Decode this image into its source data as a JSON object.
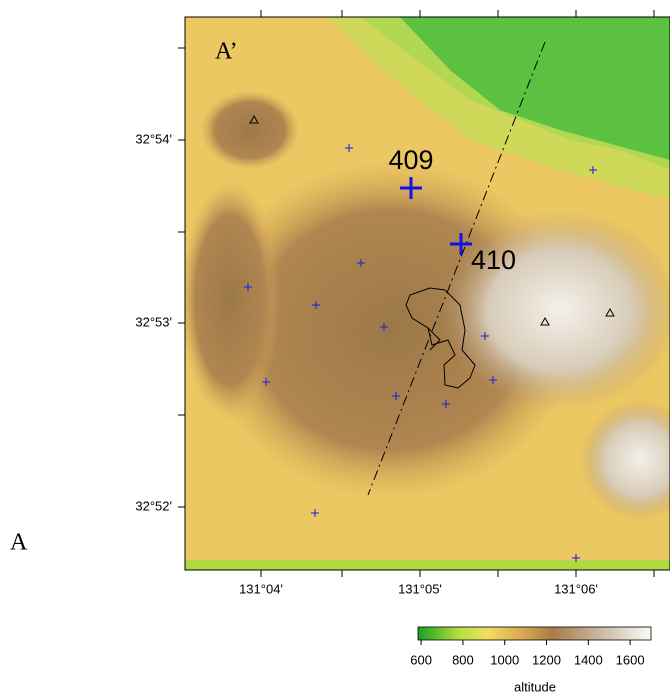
{
  "map": {
    "section_start_label": "A",
    "section_end_label": "A’",
    "stations": [
      {
        "label": "409"
      },
      {
        "label": "410"
      }
    ],
    "lat_labels": [
      "32°54'",
      "32°53'",
      "32°52'"
    ],
    "lon_labels": [
      "131°04'",
      "131°05'",
      "131°06'"
    ]
  },
  "colorbar": {
    "label": "altitude",
    "range": [
      585,
      1700
    ],
    "ticks": [
      600,
      800,
      1000,
      1200,
      1400,
      1600
    ]
  }
}
